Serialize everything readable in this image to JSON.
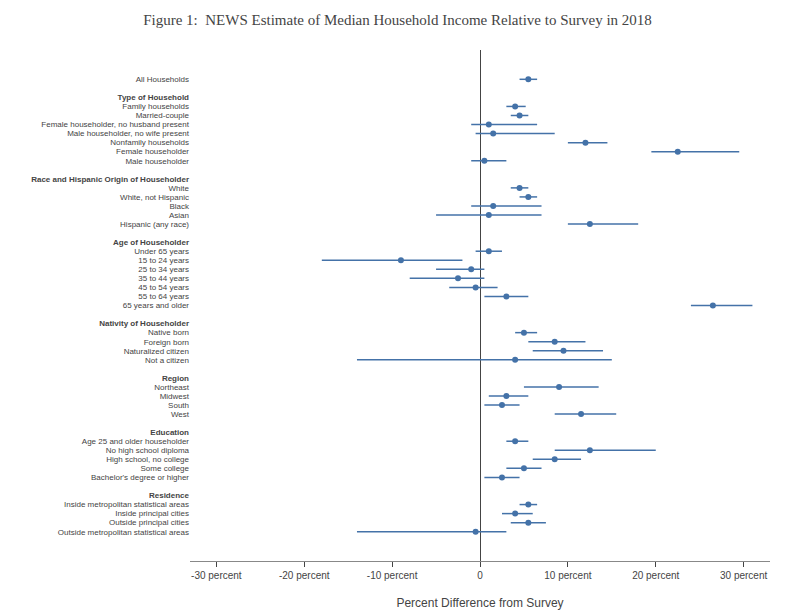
{
  "chart_data": {
    "type": "forest",
    "title": "Figure 1:  NEWS Estimate of Median Household Income Relative to Survey in 2018",
    "xlabel": "Percent Difference from Survey",
    "orientation": "horizontal",
    "grid": false,
    "xlim": [
      -33,
      33
    ],
    "xticks": [
      {
        "value": -30,
        "label": "-30 percent"
      },
      {
        "value": -20,
        "label": "-20 percent"
      },
      {
        "value": -10,
        "label": "-10 percent"
      },
      0,
      {
        "value": 10,
        "label": "10 percent"
      },
      {
        "value": 20,
        "label": "20 percent"
      },
      {
        "value": 30,
        "label": "30 percent"
      }
    ],
    "color": "#4472a8",
    "categories": [
      "All Households",
      null,
      "Type of Household",
      "Family households",
      "Married-couple",
      "Female householder, no husband present",
      "Male householder, no wife present",
      "Nonfamily households",
      "Female householder",
      "Male householder",
      null,
      "Race and Hispanic Origin of Householder",
      "White",
      "White, not Hispanic",
      "Black",
      "Asian",
      "Hispanic (any race)",
      null,
      "Age of Householder",
      "Under 65 years",
      "15 to 24 years",
      "25 to 34 years",
      "35 to 44 years",
      "45 to 54 years",
      "55 to 64 years",
      "65 years and older",
      null,
      "Nativity of Householder",
      "Native born",
      "Foreign born",
      "Naturalized citizen",
      "Not a citizen",
      null,
      "Region",
      "Northeast",
      "Midwest",
      "South",
      "West",
      null,
      "Education",
      "Age 25 and older householder",
      "No high school diploma",
      "High school, no college",
      "Some college",
      "Bachelor's degree or higher",
      null,
      "Residence",
      "Inside metropolitan statistical areas",
      "Inside principal cities",
      "Outside principal cities",
      "Outside metropolitan statistical areas"
    ],
    "values": [
      5.5,
      null,
      null,
      4.0,
      4.5,
      1.0,
      1.5,
      12.0,
      22.5,
      0.5,
      null,
      null,
      4.5,
      5.5,
      1.5,
      1.0,
      12.5,
      null,
      null,
      1.0,
      -9.0,
      -1.0,
      -2.5,
      -0.5,
      3.0,
      26.5,
      null,
      null,
      5.0,
      8.5,
      9.5,
      4.0,
      null,
      null,
      9.0,
      3.0,
      2.5,
      11.5,
      null,
      null,
      4.0,
      12.5,
      8.5,
      5.0,
      2.5,
      null,
      null,
      5.5,
      4.0,
      5.5,
      -0.5
    ],
    "ci_lo": [
      4.5,
      null,
      null,
      3.0,
      3.5,
      -1.0,
      -0.5,
      10.0,
      19.5,
      -1.0,
      null,
      null,
      3.5,
      4.5,
      -1.0,
      -5.0,
      10.0,
      null,
      null,
      -0.5,
      -18.0,
      -5.0,
      -8.0,
      -3.5,
      0.5,
      24.0,
      null,
      null,
      4.0,
      5.5,
      6.0,
      -14.0,
      null,
      null,
      5.0,
      1.0,
      0.5,
      8.5,
      null,
      null,
      3.0,
      8.5,
      6.0,
      3.0,
      0.5,
      null,
      null,
      4.5,
      2.5,
      3.5,
      -14.0
    ],
    "ci_hi": [
      6.5,
      null,
      null,
      5.2,
      5.5,
      6.5,
      8.5,
      14.5,
      29.5,
      3.0,
      null,
      null,
      5.5,
      6.5,
      7.0,
      7.0,
      18.0,
      null,
      null,
      2.5,
      -2.0,
      0.5,
      0.5,
      2.0,
      5.5,
      31.0,
      null,
      null,
      6.5,
      12.0,
      14.0,
      15.0,
      null,
      null,
      13.5,
      5.5,
      4.5,
      15.5,
      null,
      null,
      5.5,
      20.0,
      11.5,
      7.0,
      4.5,
      null,
      null,
      6.5,
      6.0,
      7.5,
      3.0
    ]
  }
}
